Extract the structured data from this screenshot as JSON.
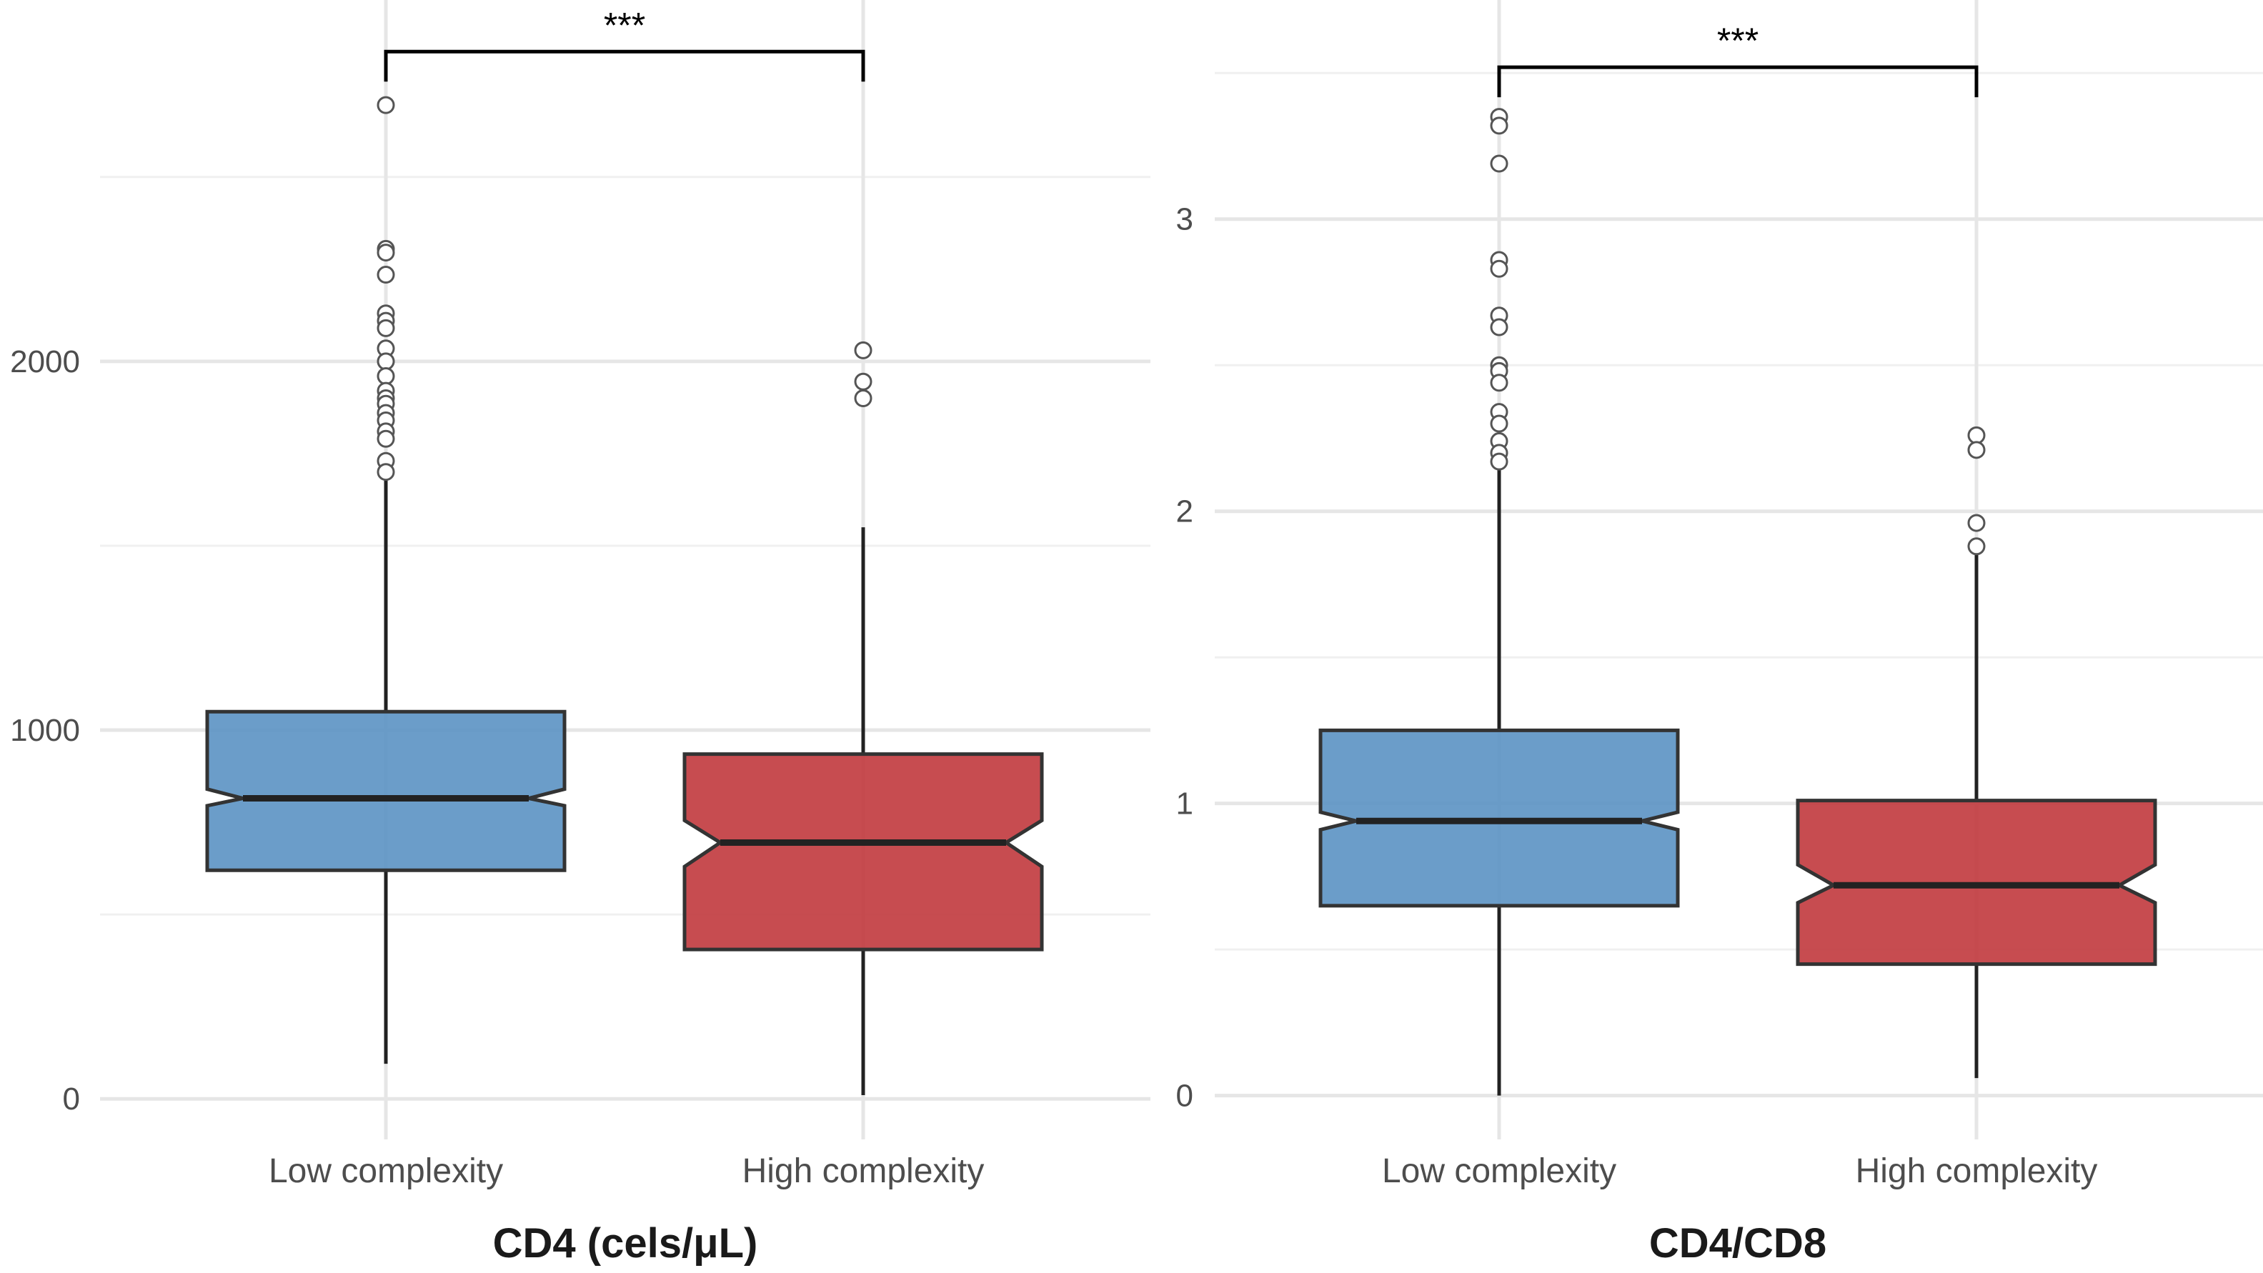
{
  "colors": {
    "low": "#5b92c3",
    "high": "#c1393d"
  },
  "chart_data": [
    {
      "type": "box",
      "title": "CD4 (cels/μL)",
      "categories": [
        "Low complexity",
        "High complexity"
      ],
      "ylim": [
        -110,
        2980
      ],
      "major_ticks": [
        0,
        1000,
        2000
      ],
      "tick_labels": [
        "0",
        "1000",
        "2000"
      ],
      "minor_ticks": [
        500,
        1500,
        2500
      ],
      "notch": true,
      "significance": {
        "label": "***",
        "y": 2840
      },
      "series": [
        {
          "name": "Low complexity",
          "color_key": "low",
          "whisker_low": 95,
          "q1": 620,
          "median": 815,
          "q3": 1050,
          "notch_low": 795,
          "notch_high": 840,
          "whisker_high": 1680,
          "outliers": [
            2695,
            2305,
            2295,
            2235,
            2130,
            2110,
            2090,
            2035,
            2000,
            1960,
            1920,
            1900,
            1885,
            1860,
            1840,
            1810,
            1790,
            1730,
            1700
          ]
        },
        {
          "name": "High complexity",
          "color_key": "high",
          "whisker_low": 10,
          "q1": 405,
          "median": 695,
          "q3": 935,
          "notch_low": 630,
          "notch_high": 755,
          "whisker_high": 1550,
          "outliers": [
            2030,
            1945,
            1900
          ]
        }
      ]
    },
    {
      "type": "box",
      "title": "CD4/CD8",
      "categories": [
        "Low complexity",
        "High complexity"
      ],
      "ylim": [
        -0.15,
        3.75
      ],
      "major_ticks": [
        0,
        1,
        2,
        3
      ],
      "tick_labels": [
        "0",
        "1",
        "2",
        "3"
      ],
      "minor_ticks": [
        0.5,
        1.5,
        2.5,
        3.5
      ],
      "notch": true,
      "significance": {
        "label": "***",
        "y": 3.52
      },
      "series": [
        {
          "name": "Low complexity",
          "color_key": "low",
          "whisker_low": 0.0,
          "q1": 0.65,
          "median": 0.94,
          "q3": 1.25,
          "notch_low": 0.91,
          "notch_high": 0.97,
          "whisker_high": 2.16,
          "outliers": [
            3.35,
            3.32,
            3.19,
            2.86,
            2.83,
            2.67,
            2.63,
            2.5,
            2.48,
            2.44,
            2.34,
            2.3,
            2.24,
            2.2,
            2.17
          ]
        },
        {
          "name": "High complexity",
          "color_key": "high",
          "whisker_low": 0.06,
          "q1": 0.45,
          "median": 0.72,
          "q3": 1.01,
          "notch_low": 0.66,
          "notch_high": 0.79,
          "whisker_high": 1.85,
          "outliers": [
            2.26,
            2.21,
            1.96,
            1.88
          ]
        }
      ]
    }
  ]
}
